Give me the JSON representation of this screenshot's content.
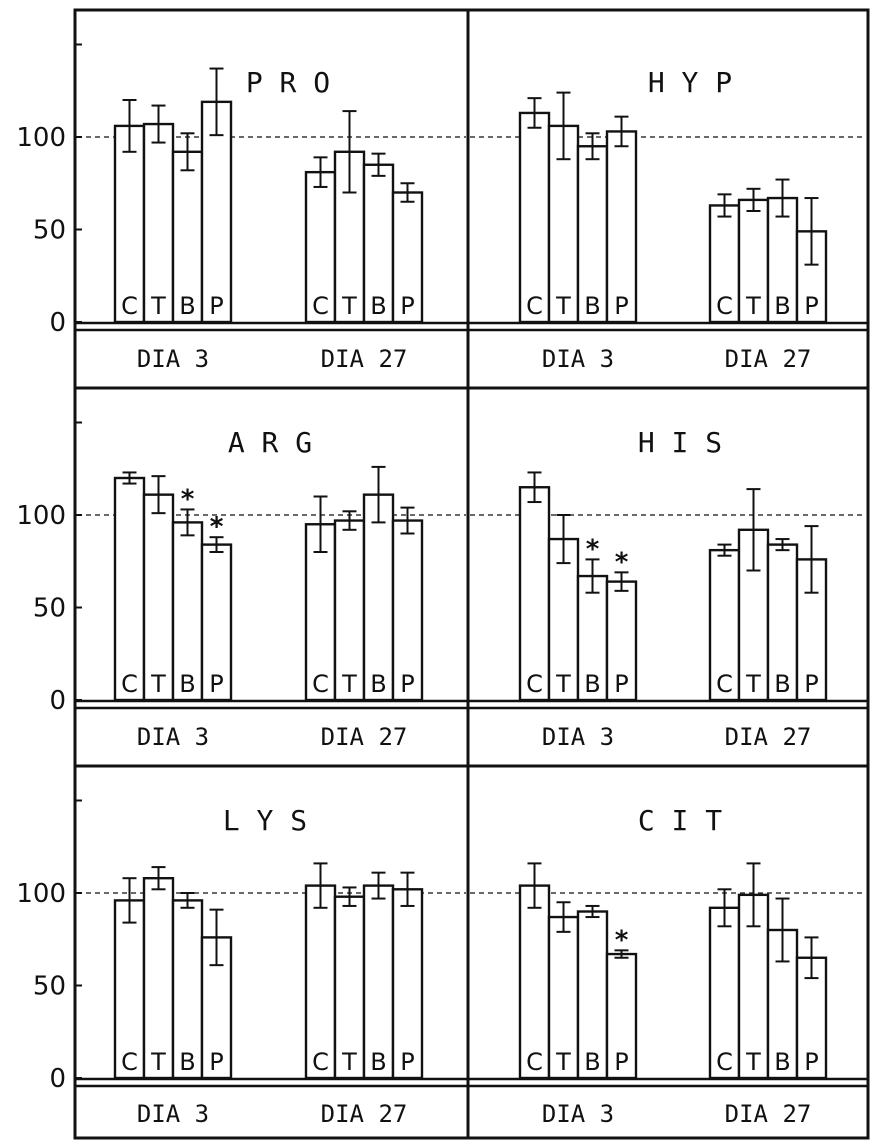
{
  "figure": {
    "y_tick_labels": [
      "0",
      "50",
      "100"
    ],
    "group_labels": [
      "DIA 3",
      "DIA 27"
    ],
    "reference_value": 100,
    "significance_glyph": "*"
  },
  "chart_data": [
    {
      "type": "bar",
      "title": "P R O",
      "categories": [
        "C",
        "T",
        "B",
        "P"
      ],
      "groups": [
        "DIA 3",
        "DIA 27"
      ],
      "series": [
        {
          "group": "DIA 3",
          "values": [
            106,
            107,
            92,
            119
          ],
          "errors": [
            14,
            10,
            10,
            18
          ],
          "stars": [
            0,
            0,
            0,
            0
          ]
        },
        {
          "group": "DIA 27",
          "values": [
            81,
            92,
            85,
            70
          ],
          "errors": [
            8,
            22,
            6,
            5
          ],
          "stars": [
            0,
            0,
            0,
            0
          ]
        }
      ],
      "ylim": [
        0,
        150
      ],
      "yticks": [
        0,
        50,
        100
      ],
      "reference_line": 100,
      "grid": false
    },
    {
      "type": "bar",
      "title": "H Y P",
      "categories": [
        "C",
        "T",
        "B",
        "P"
      ],
      "groups": [
        "DIA 3",
        "DIA 27"
      ],
      "series": [
        {
          "group": "DIA 3",
          "values": [
            113,
            106,
            95,
            103
          ],
          "errors": [
            8,
            18,
            7,
            8
          ],
          "stars": [
            0,
            0,
            0,
            0
          ]
        },
        {
          "group": "DIA 27",
          "values": [
            63,
            66,
            67,
            49
          ],
          "errors": [
            6,
            6,
            10,
            18
          ],
          "stars": [
            0,
            0,
            0,
            0
          ]
        }
      ],
      "ylim": [
        0,
        150
      ],
      "yticks": [
        0,
        50,
        100
      ],
      "reference_line": 100,
      "grid": false
    },
    {
      "type": "bar",
      "title": "A R G",
      "categories": [
        "C",
        "T",
        "B",
        "P"
      ],
      "groups": [
        "DIA 3",
        "DIA 27"
      ],
      "series": [
        {
          "group": "DIA 3",
          "values": [
            120,
            111,
            96,
            84
          ],
          "errors": [
            3,
            10,
            7,
            4
          ],
          "stars": [
            0,
            0,
            1,
            2
          ]
        },
        {
          "group": "DIA 27",
          "values": [
            95,
            97,
            111,
            97
          ],
          "errors": [
            15,
            5,
            15,
            7
          ],
          "stars": [
            0,
            0,
            0,
            0
          ]
        }
      ],
      "ylim": [
        0,
        150
      ],
      "yticks": [
        0,
        50,
        100
      ],
      "reference_line": 100,
      "grid": false
    },
    {
      "type": "bar",
      "title": "H I S",
      "categories": [
        "C",
        "T",
        "B",
        "P"
      ],
      "groups": [
        "DIA 3",
        "DIA 27"
      ],
      "series": [
        {
          "group": "DIA 3",
          "values": [
            115,
            87,
            67,
            64
          ],
          "errors": [
            8,
            13,
            9,
            5
          ],
          "stars": [
            0,
            0,
            1,
            1
          ]
        },
        {
          "group": "DIA 27",
          "values": [
            81,
            92,
            84,
            76
          ],
          "errors": [
            3,
            22,
            3,
            18
          ],
          "stars": [
            0,
            0,
            0,
            0
          ]
        }
      ],
      "ylim": [
        0,
        150
      ],
      "yticks": [
        0,
        50,
        100
      ],
      "reference_line": 100,
      "grid": false
    },
    {
      "type": "bar",
      "title": "L Y S",
      "categories": [
        "C",
        "T",
        "B",
        "P"
      ],
      "groups": [
        "DIA 3",
        "DIA 27"
      ],
      "series": [
        {
          "group": "DIA 3",
          "values": [
            96,
            108,
            96,
            76
          ],
          "errors": [
            12,
            6,
            4,
            15
          ],
          "stars": [
            0,
            0,
            0,
            0
          ]
        },
        {
          "group": "DIA 27",
          "values": [
            104,
            98,
            104,
            102
          ],
          "errors": [
            12,
            5,
            7,
            9
          ],
          "stars": [
            0,
            0,
            0,
            0
          ]
        }
      ],
      "ylim": [
        0,
        150
      ],
      "yticks": [
        0,
        50,
        100
      ],
      "reference_line": 100,
      "grid": false
    },
    {
      "type": "bar",
      "title": "C I T",
      "categories": [
        "C",
        "T",
        "B",
        "P"
      ],
      "groups": [
        "DIA 3",
        "DIA 27"
      ],
      "series": [
        {
          "group": "DIA 3",
          "values": [
            104,
            87,
            90,
            67
          ],
          "errors": [
            12,
            8,
            3,
            2
          ],
          "stars": [
            0,
            0,
            0,
            1
          ]
        },
        {
          "group": "DIA 27",
          "values": [
            92,
            99,
            80,
            65
          ],
          "errors": [
            10,
            17,
            17,
            11
          ],
          "stars": [
            0,
            0,
            0,
            0
          ]
        }
      ],
      "ylim": [
        0,
        150
      ],
      "yticks": [
        0,
        50,
        100
      ],
      "reference_line": 100,
      "grid": false
    }
  ]
}
